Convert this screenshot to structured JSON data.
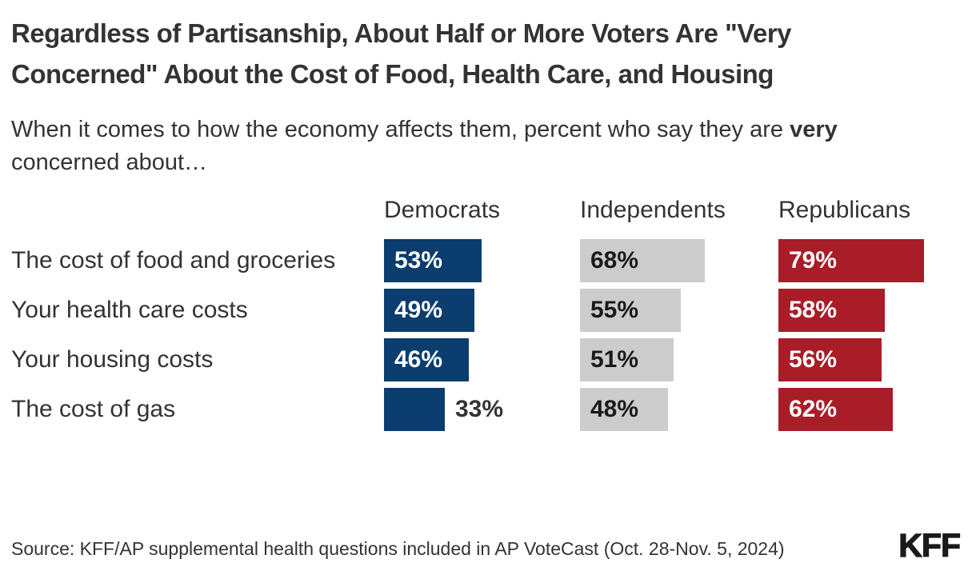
{
  "chart_data": {
    "type": "bar",
    "orientation": "horizontal",
    "title": "Regardless of Partisanship, About Half or More Voters Are \"Very Concerned\" About the Cost of Food, Health Care, and Housing",
    "subtitle_parts": {
      "part1": "When it comes to how the economy affects them, percent who say they are ",
      "bold_word": "very",
      "part2": " concerned about…"
    },
    "categories": [
      "The cost of food and groceries",
      "Your health care costs",
      "Your housing costs",
      "The cost of gas"
    ],
    "series": [
      {
        "name": "Democrats",
        "color": "#0B3D6E",
        "values": [
          53,
          49,
          46,
          33
        ]
      },
      {
        "name": "Independents",
        "color": "#CCCCCC",
        "values": [
          68,
          55,
          51,
          48
        ]
      },
      {
        "name": "Republicans",
        "color": "#A81D28",
        "values": [
          79,
          58,
          56,
          62
        ]
      }
    ],
    "value_suffix": "%",
    "xlim": [
      0,
      100
    ],
    "grid": false,
    "legend_position": "column-headers"
  },
  "colors": {
    "democrats": "#0B3D6E",
    "independents": "#CCCCCC",
    "republicans": "#A81D28",
    "text": "#333333",
    "background": "#FFFFFF"
  },
  "footer": {
    "source": "Source: KFF/AP supplemental health questions included in AP VoteCast (Oct. 28-Nov. 5, 2024)",
    "logo_text": "KFF"
  }
}
